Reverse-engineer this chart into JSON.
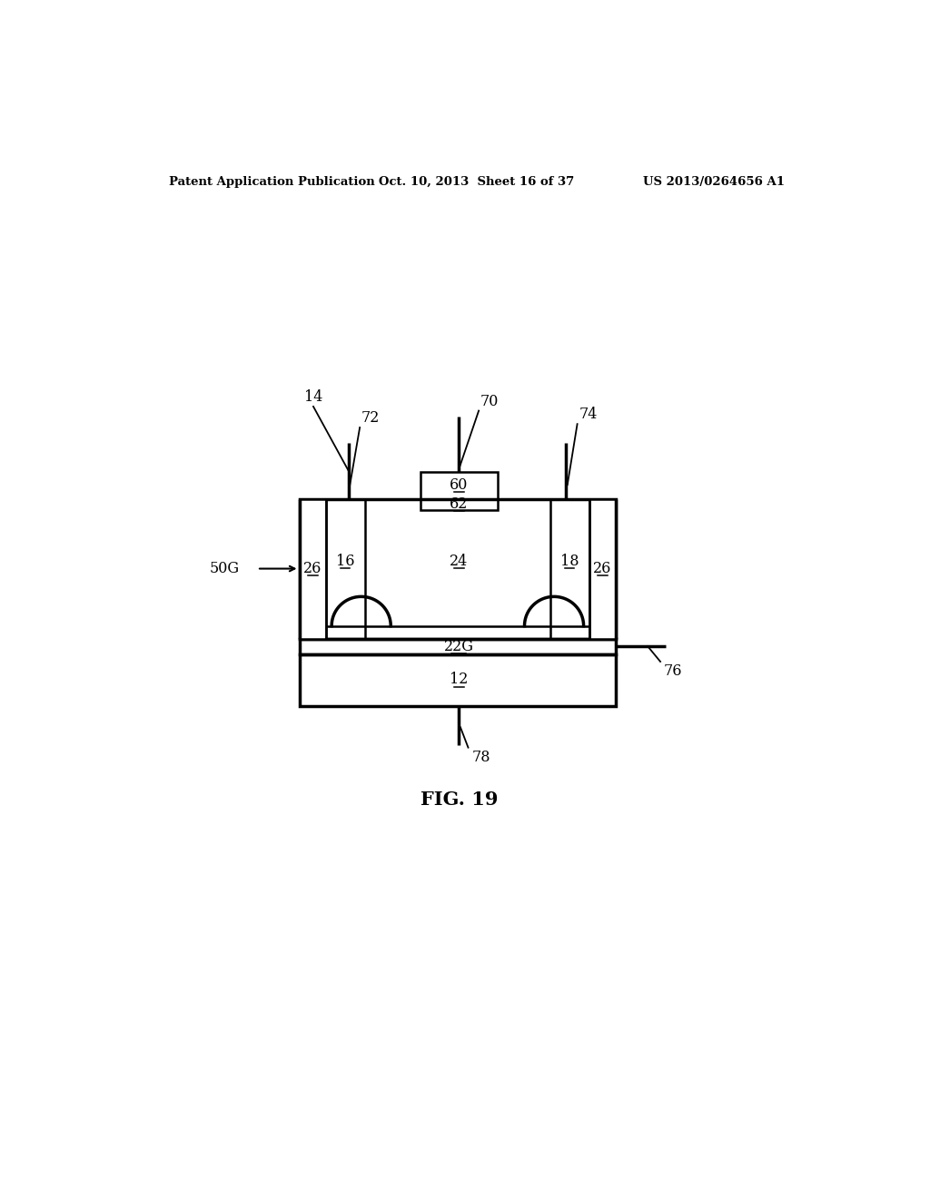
{
  "header_left": "Patent Application Publication",
  "header_center": "Oct. 10, 2013  Sheet 16 of 37",
  "header_right": "US 2013/0264656 A1",
  "figure_label": "FIG. 19",
  "background_color": "#ffffff",
  "line_color": "#000000",
  "fig_width": 10.24,
  "fig_height": 13.2,
  "dpi": 100
}
